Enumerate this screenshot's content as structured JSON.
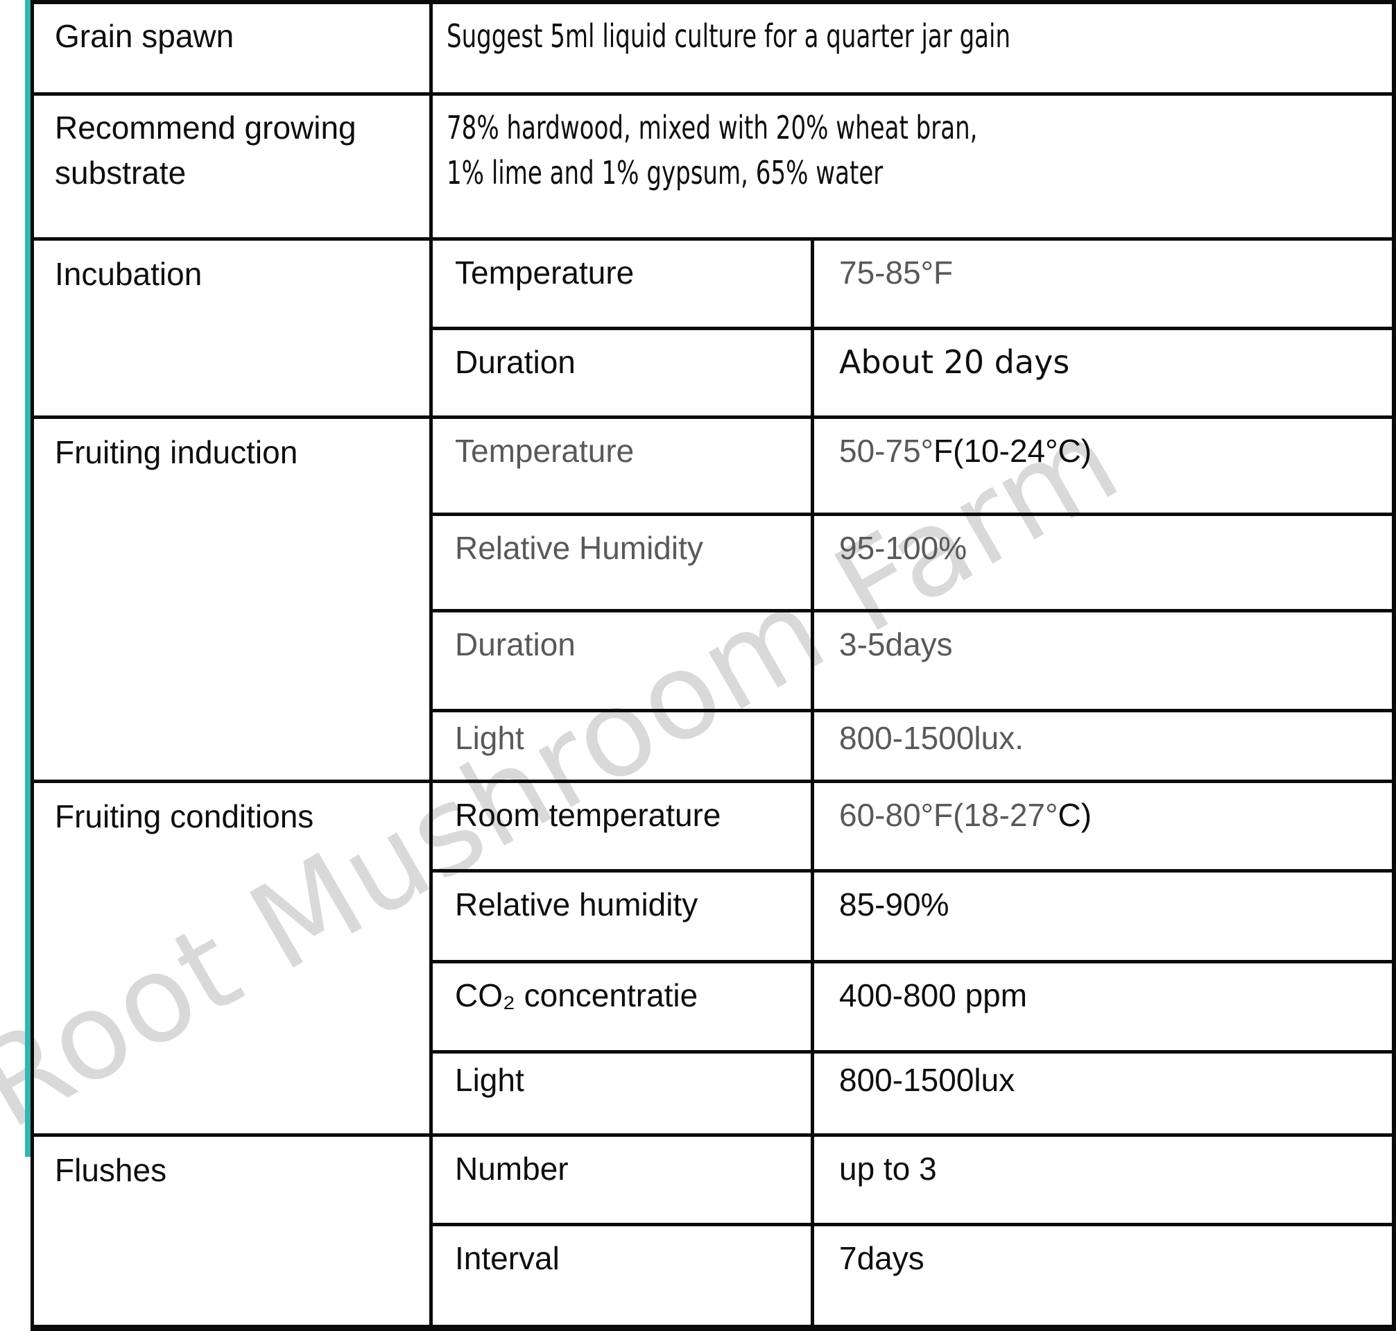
{
  "colors": {
    "accent_teal": "#35b5b2",
    "border_black": "#0a0a0a",
    "text_black": "#0e0e0e",
    "text_gray": "#595959",
    "watermark_gray": "#d9d9d9"
  },
  "watermark": {
    "text": "Root Mushroom Farm"
  },
  "table": {
    "grain_spawn": {
      "label": "Grain spawn",
      "value": "Suggest 5ml liquid culture for a quarter jar gain"
    },
    "substrate": {
      "label": "Recommend growing substrate",
      "value_line1": "78% hardwood, mixed with 20% wheat bran,",
      "value_line2": "1% lime and 1% gypsum, 65% water"
    },
    "incubation": {
      "label": "Incubation",
      "rows": [
        {
          "param": "Temperature",
          "value": "75-85°F"
        },
        {
          "param": "Duration",
          "value": "About 20 days"
        }
      ]
    },
    "fruiting_induction": {
      "label": "Fruiting induction",
      "rows": [
        {
          "param": "Temperature",
          "value_gray": "50-75°",
          "value_black": "F(10-24°C)"
        },
        {
          "param": "Relative Humidity",
          "value": "95-100%"
        },
        {
          "param": "Duration",
          "value": "3-5days"
        },
        {
          "param": "Light",
          "value": "800-1500lux."
        }
      ]
    },
    "fruiting_conditions": {
      "label": "Fruiting conditions",
      "rows": [
        {
          "param": "Room temperature",
          "value_gray": "60-80°F(18-27°",
          "value_black": "C)"
        },
        {
          "param": "Relative humidity",
          "value": "85-90%"
        },
        {
          "param": "CO₂ concentratie",
          "value": "400-800 ppm"
        },
        {
          "param": "Light",
          "value": "800-1500lux"
        }
      ]
    },
    "flushes": {
      "label": "Flushes",
      "rows": [
        {
          "param": "Number",
          "value": "up to 3"
        },
        {
          "param": "Interval",
          "value": "7days"
        }
      ]
    }
  }
}
